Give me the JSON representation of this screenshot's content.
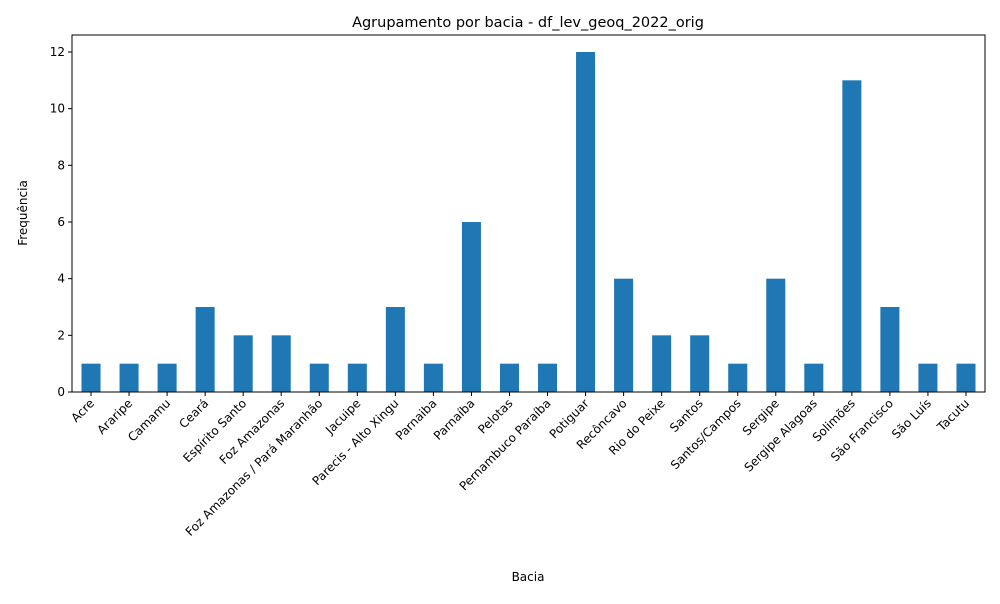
{
  "chart_data": {
    "type": "bar",
    "title": "Agrupamento por bacia - df_lev_geoq_2022_orig",
    "xlabel": "Bacia",
    "ylabel": "Frequência",
    "ylim": [
      0,
      12.6
    ],
    "yticks": [
      0,
      2,
      4,
      6,
      8,
      10,
      12
    ],
    "grid": false,
    "legend": "none",
    "bar_color": "#1f77b4",
    "categories": [
      "Acre",
      "Araripe",
      "Camamu",
      "Ceará",
      "Espírito Santo",
      "Foz Amazonas",
      "Foz Amazonas / Pará Maranhão",
      "Jacuipe",
      "Parecis - Alto Xingu",
      "Parnaiba",
      "Parnaíba",
      "Pelotas",
      "Pernambuco Paraíba",
      "Potiguar",
      "Recôncavo",
      "Rio do Peixe",
      "Santos",
      "Santos/Campos",
      "Sergipe",
      "Sergipe Alagoas",
      "Solimões",
      "São Francisco",
      "São Luís",
      "Tacutu"
    ],
    "values": [
      1,
      1,
      1,
      3,
      2,
      2,
      1,
      1,
      3,
      1,
      6,
      1,
      1,
      12,
      4,
      2,
      2,
      1,
      4,
      1,
      11,
      3,
      1,
      1
    ]
  }
}
